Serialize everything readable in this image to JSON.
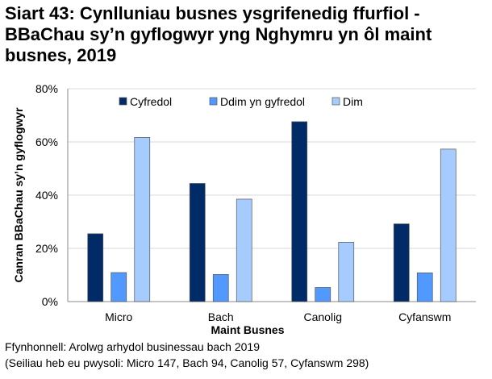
{
  "chart_data": {
    "type": "bar",
    "title": "Siart 43: Cynlluniau busnes ysgrifenedig ffurfiol - BBaChau sy’n gyflogwyr yng Nghymru yn ôl maint busnes, 2019",
    "xlabel": "Maint Busnes",
    "ylabel": "Canran BBaChau sy’n gyflogwyr",
    "categories": [
      "Micro",
      "Bach",
      "Canolig",
      "Cyfanswm"
    ],
    "series": [
      {
        "name": "Cyfredol",
        "values": [
          25.5,
          44.4,
          67.6,
          29.2
        ],
        "color": "#002b66"
      },
      {
        "name": "Ddim yn gyfredol",
        "values": [
          10.9,
          10.2,
          5.3,
          10.8
        ],
        "color": "#5199ff"
      },
      {
        "name": "Dim",
        "values": [
          61.7,
          38.5,
          22.3,
          57.3
        ],
        "color": "#a6cbff"
      }
    ],
    "ylim": [
      0,
      80
    ],
    "yticks": [
      "0%",
      "20%",
      "40%",
      "60%",
      "80%"
    ],
    "grid": true,
    "legend": "top"
  },
  "footer": {
    "source": "Ffynhonnell: Arolwg arhydol businessau bach 2019",
    "base": "(Seiliau heb eu pwysoli: Micro 147, Bach 94, Canolig 57, Cyfanswm 298)"
  }
}
